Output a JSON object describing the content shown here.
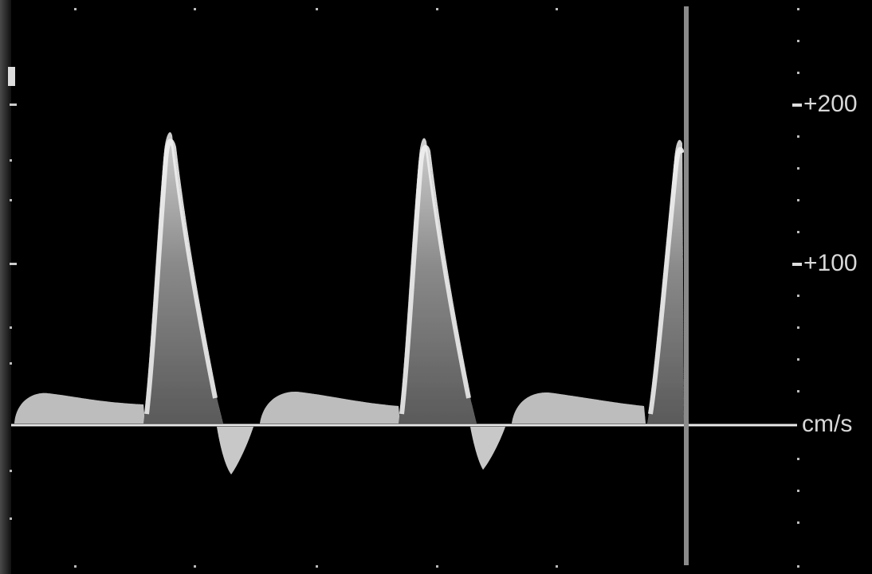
{
  "scale": {
    "labels": [
      "+200",
      "+100"
    ],
    "unit": "cm/s"
  },
  "trace": {
    "baseline_velocity": 0,
    "peak_velocity": 185,
    "reverse_peak_velocity": -30,
    "cycles": 3
  }
}
